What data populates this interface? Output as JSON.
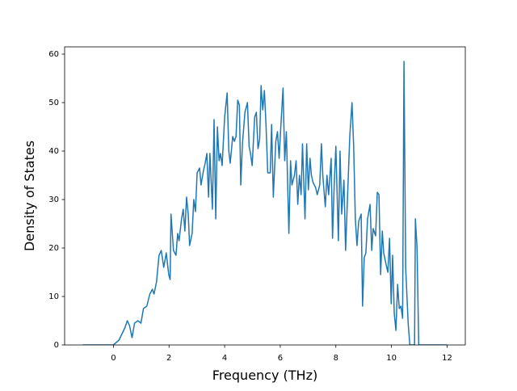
{
  "chart_data": {
    "type": "line",
    "x_label": "Frequency (THz)",
    "y_label": "Density of States",
    "color": "#1f77b4",
    "xlim": [
      -1.755,
      12.655
    ],
    "xticks": [
      0,
      2,
      4,
      6,
      8,
      10,
      12
    ],
    "ylim": [
      0,
      61.5
    ],
    "yticks": [
      0,
      10,
      20,
      30,
      40,
      50,
      60
    ],
    "x": [
      -1.1,
      0,
      0.2,
      0.41,
      0.5,
      0.58,
      0.67,
      0.76,
      0.88,
      0.99,
      1.08,
      1.2,
      1.31,
      1.4,
      1.46,
      1.55,
      1.64,
      1.72,
      1.81,
      1.9,
      1.99,
      2.04,
      2.07,
      2.16,
      2.25,
      2.31,
      2.36,
      2.45,
      2.51,
      2.57,
      2.63,
      2.69,
      2.74,
      2.83,
      2.89,
      2.95,
      3.01,
      3.1,
      3.15,
      3.24,
      3.3,
      3.36,
      3.42,
      3.47,
      3.56,
      3.62,
      3.68,
      3.74,
      3.8,
      3.85,
      3.91,
      4.0,
      4.09,
      4.15,
      4.2,
      4.29,
      4.35,
      4.41,
      4.47,
      4.53,
      4.58,
      4.64,
      4.73,
      4.82,
      4.88,
      4.93,
      4.99,
      5.08,
      5.14,
      5.2,
      5.26,
      5.31,
      5.37,
      5.43,
      5.49,
      5.55,
      5.64,
      5.69,
      5.75,
      5.84,
      5.9,
      5.96,
      6.02,
      6.1,
      6.16,
      6.22,
      6.31,
      6.37,
      6.42,
      6.51,
      6.57,
      6.63,
      6.69,
      6.75,
      6.8,
      6.89,
      6.95,
      7.01,
      7.07,
      7.12,
      7.18,
      7.27,
      7.33,
      7.42,
      7.48,
      7.53,
      7.62,
      7.68,
      7.74,
      7.83,
      7.88,
      7.94,
      8.0,
      8.09,
      8.15,
      8.21,
      8.29,
      8.35,
      8.41,
      8.5,
      8.58,
      8.64,
      8.7,
      8.76,
      8.82,
      8.91,
      8.96,
      9.02,
      9.08,
      9.14,
      9.23,
      9.29,
      9.34,
      9.43,
      9.49,
      9.55,
      9.61,
      9.67,
      9.72,
      9.81,
      9.87,
      9.93,
      9.99,
      10.04,
      10.1,
      10.16,
      10.22,
      10.28,
      10.34,
      10.4,
      10.45,
      10.51,
      10.6,
      10.66,
      10.72,
      10.77,
      10.83,
      10.86,
      10.92,
      10.98,
      12.0
    ],
    "values": [
      0,
      0,
      1,
      3.5,
      5,
      4,
      1.5,
      4.5,
      5,
      4.5,
      7.5,
      8,
      10.5,
      11.5,
      10.5,
      13,
      18.5,
      19.5,
      16,
      19,
      14.5,
      13.5,
      27,
      19.5,
      18.5,
      23,
      21.5,
      26,
      28,
      23.5,
      30.5,
      27,
      20.5,
      23,
      30,
      27.5,
      35.5,
      36.5,
      33,
      36,
      37.5,
      39.5,
      30.5,
      39.5,
      28,
      46.5,
      26,
      45,
      38,
      39.5,
      37,
      47,
      52,
      40,
      37.5,
      43,
      42,
      43,
      50.5,
      49.5,
      33,
      41.5,
      48,
      50,
      41,
      39.5,
      37,
      47,
      48,
      40.5,
      42.5,
      53.5,
      48.5,
      52.5,
      45,
      35.5,
      35.5,
      45.5,
      30.5,
      42,
      44,
      38.5,
      45,
      53,
      38,
      44,
      23,
      38,
      33,
      35,
      38,
      29,
      35,
      31,
      41.5,
      26,
      41.5,
      32,
      38.5,
      35,
      33.5,
      32.5,
      31,
      33,
      41.5,
      35,
      28.5,
      35,
      31,
      38.5,
      22,
      33,
      41,
      21.5,
      40,
      27,
      34,
      19.5,
      29,
      43,
      50,
      41,
      26,
      20.5,
      25.5,
      27,
      8,
      18,
      19,
      26,
      29,
      19.5,
      24,
      22.5,
      31.5,
      31,
      14.5,
      23.5,
      19,
      16.5,
      15,
      22,
      8.5,
      18.5,
      6.5,
      3,
      12.5,
      7.5,
      8,
      5.5,
      58.5,
      16,
      4.5,
      0,
      0,
      0,
      0,
      26,
      20,
      0,
      0
    ]
  }
}
